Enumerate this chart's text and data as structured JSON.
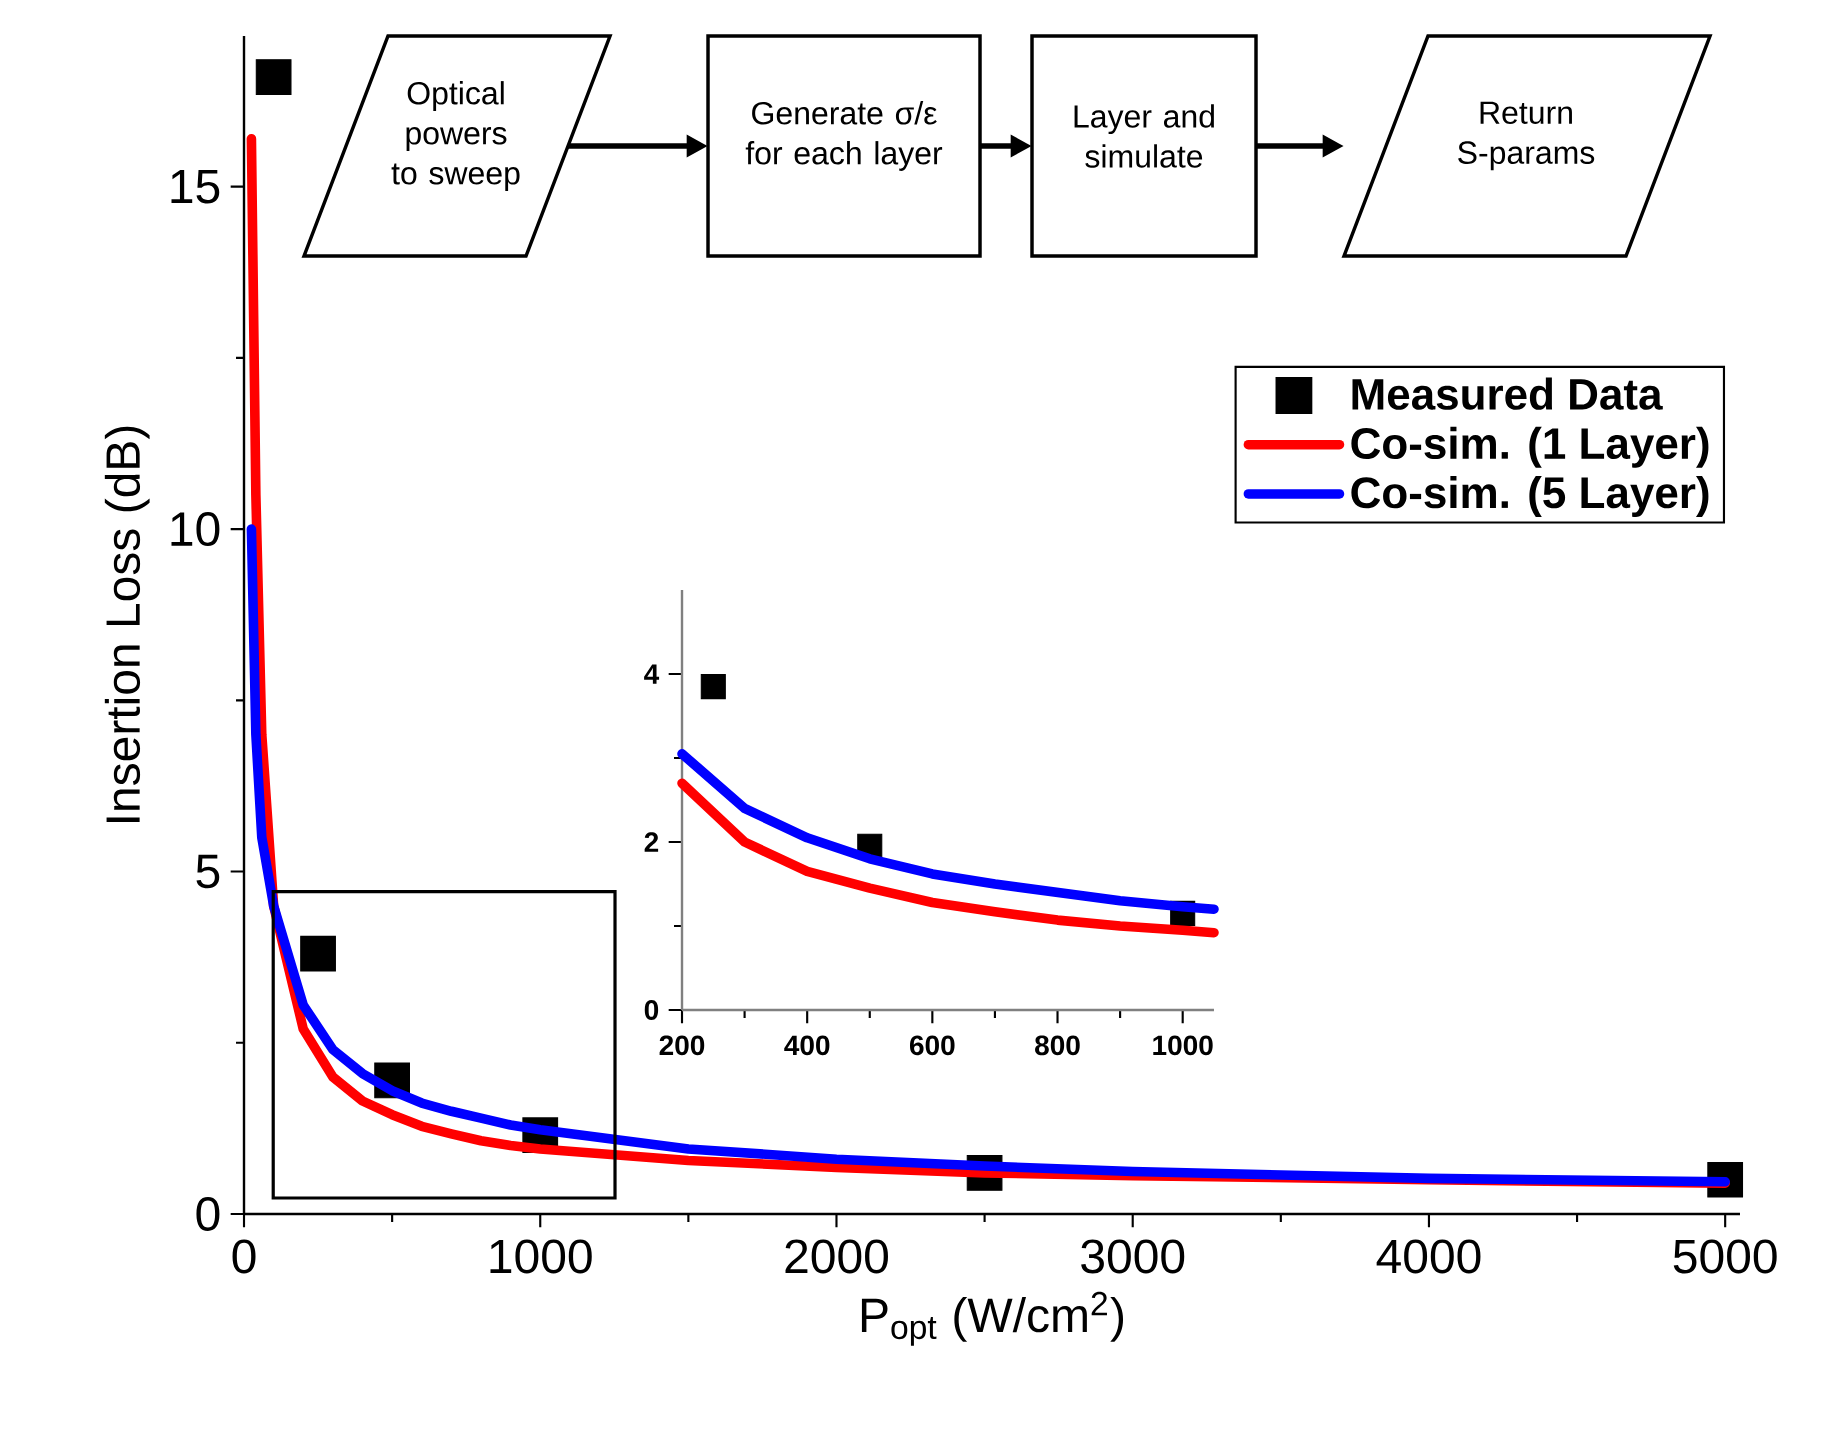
{
  "chart_data": [
    {
      "type": "line",
      "xlabel": "P$_{opt}$ (W/cm$^{2}$)",
      "ylabel": "Insertion Loss (dB)",
      "xlim": [
        0,
        5050
      ],
      "ylim": [
        0,
        17.2
      ],
      "xticks": [
        0,
        1000,
        2000,
        3000,
        4000,
        5000
      ],
      "yticks": [
        0,
        5,
        10,
        15
      ],
      "legend": "top right",
      "line_style": "solid",
      "annotations": [
        "Optical powers to sweep",
        "Generate σ/ε for each layer",
        "Layer and simulate",
        "Return S-params"
      ],
      "series": [
        {
          "name": "Measured Data",
          "type": "scatter",
          "marker": "square",
          "color": "#000000",
          "x": [
            100,
            250,
            500,
            1000,
            2500,
            5000
          ],
          "values": [
            16.6,
            3.8,
            1.95,
            1.15,
            0.6,
            0.5
          ]
        },
        {
          "name": "Co-sim. (1 Layer)",
          "color": "#ff0000",
          "x": [
            25,
            40,
            60,
            100,
            200,
            300,
            400,
            500,
            600,
            700,
            800,
            900,
            1000,
            1500,
            2000,
            2500,
            3000,
            4000,
            5000
          ],
          "values": [
            15.7,
            10.5,
            7.0,
            4.5,
            2.7,
            2.0,
            1.65,
            1.45,
            1.28,
            1.17,
            1.07,
            1.0,
            0.95,
            0.78,
            0.68,
            0.6,
            0.56,
            0.5,
            0.45
          ]
        },
        {
          "name": "Co-sim. (5 Layer)",
          "color": "#0000ff",
          "x": [
            25,
            40,
            60,
            100,
            200,
            300,
            400,
            500,
            600,
            700,
            800,
            900,
            1000,
            1500,
            2000,
            2500,
            3000,
            4000,
            5000
          ],
          "values": [
            10.0,
            7.0,
            5.5,
            4.5,
            3.05,
            2.4,
            2.05,
            1.8,
            1.62,
            1.5,
            1.4,
            1.3,
            1.23,
            0.95,
            0.8,
            0.7,
            0.62,
            0.52,
            0.47
          ]
        }
      ]
    },
    {
      "type": "line",
      "xlim": [
        200,
        1050
      ],
      "ylim": [
        0,
        5
      ],
      "xticks": [
        200,
        400,
        600,
        800,
        1000
      ],
      "yticks": [
        0,
        2,
        4
      ],
      "line_style": "solid",
      "series": [
        {
          "type": "scatter",
          "marker": "square",
          "color": "#000000",
          "x": [
            250,
            500,
            1000
          ],
          "values": [
            3.85,
            1.95,
            1.15
          ]
        },
        {
          "color": "#ff0000",
          "x": [
            200,
            300,
            400,
            500,
            600,
            700,
            800,
            900,
            1000,
            1050
          ],
          "values": [
            2.7,
            2.0,
            1.65,
            1.45,
            1.28,
            1.17,
            1.07,
            1.0,
            0.95,
            0.92
          ]
        },
        {
          "color": "#0000ff",
          "x": [
            200,
            300,
            400,
            500,
            600,
            700,
            800,
            900,
            1000,
            1050
          ],
          "values": [
            3.05,
            2.4,
            2.05,
            1.8,
            1.62,
            1.5,
            1.4,
            1.3,
            1.23,
            1.2
          ]
        }
      ]
    }
  ]
}
